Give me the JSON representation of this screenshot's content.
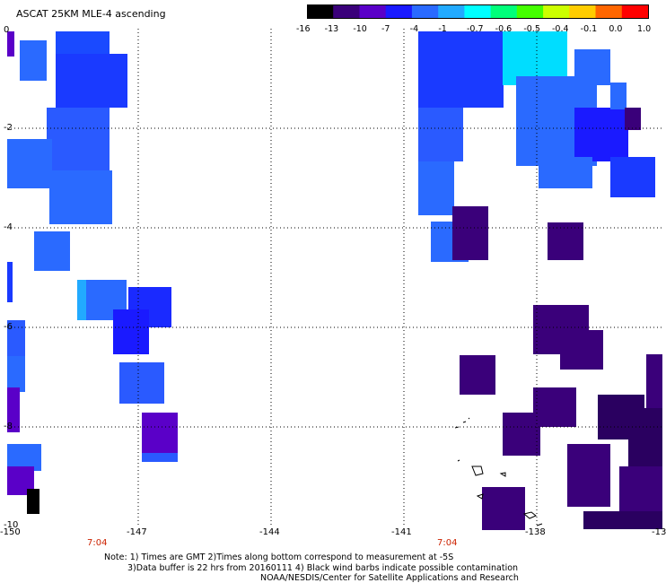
{
  "title": "ASCAT 25KM MLE-4 ascending",
  "colorbar": {
    "labels": [
      "-16",
      "-13",
      "-10",
      "-7",
      "-4",
      "-1",
      "-0.7",
      "-0.6",
      "-0.5",
      "-0.4",
      "-0.1",
      "0.0",
      "1.0"
    ],
    "colors": [
      "#000000",
      "#3a007a",
      "#5a00c8",
      "#1a1aff",
      "#2a6aff",
      "#22aaff",
      "#00ffff",
      "#00ff7a",
      "#44ff00",
      "#ccff00",
      "#ffcc00",
      "#ff6600",
      "#ff0000"
    ]
  },
  "y_axis": {
    "labels": [
      "0",
      "-2",
      "-4",
      "-6",
      "-8",
      "-10"
    ]
  },
  "x_axis": {
    "labels": [
      "-150",
      "-147",
      "-144",
      "-141",
      "-138",
      "-13"
    ]
  },
  "times": [
    "7:04",
    "7:04"
  ],
  "notes": [
    "Note: 1) Times are GMT 2)Times along bottom correspond to measurement at -5S",
    "3)Data buffer is 22 hrs from 20160111 4) Black wind barbs indicate possible contamination",
    "NOAA/NESDIS/Center for Satellite Applications and Research"
  ]
}
